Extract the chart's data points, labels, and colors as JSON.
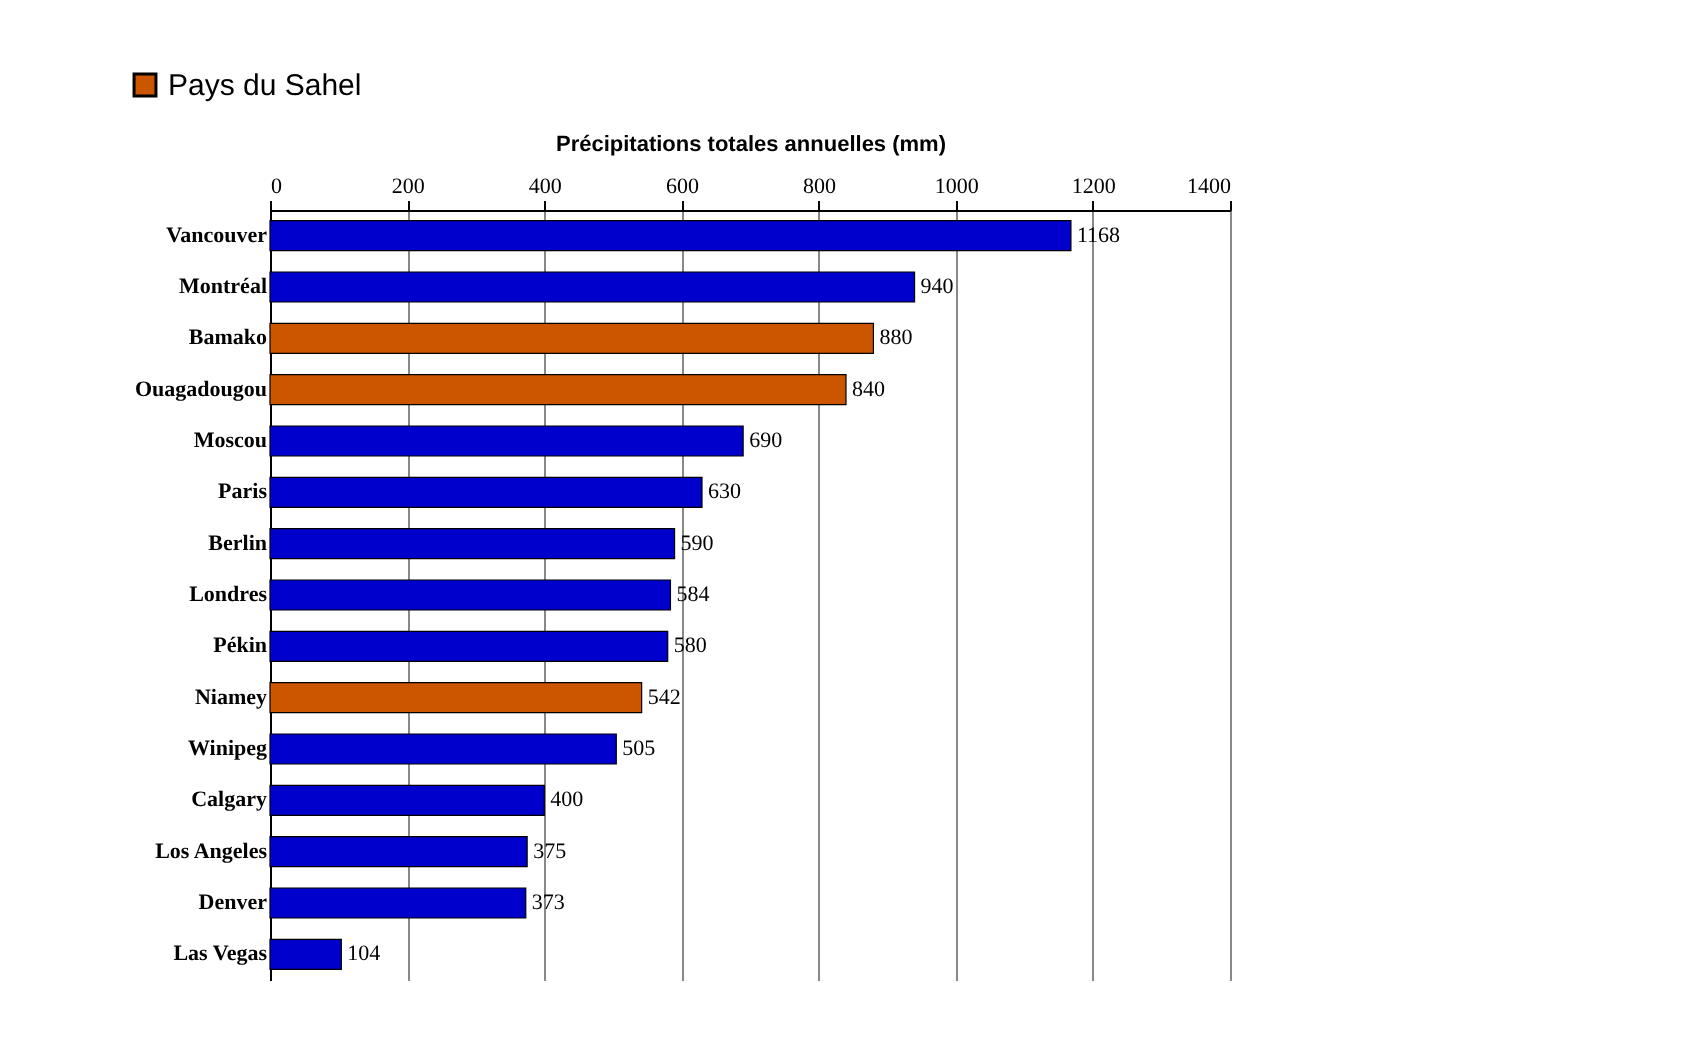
{
  "chart_data": {
    "type": "bar",
    "orientation": "horizontal",
    "xlabel": "Précipitations totales annuelles (mm)",
    "categories": [
      "Vancouver",
      "Montréal",
      "Bamako",
      "Ouagadougou",
      "Moscou",
      "Paris",
      "Berlin",
      "Londres",
      "Pékin",
      "Niamey",
      "Winipeg",
      "Calgary",
      "Los Angeles",
      "Denver",
      "Las Vegas"
    ],
    "series": [
      {
        "color": "#0000cc",
        "values": [
          1168,
          940,
          null,
          null,
          690,
          630,
          590,
          584,
          580,
          null,
          505,
          400,
          375,
          373,
          104
        ]
      },
      {
        "name": "Pays du Sahel",
        "color": "#cc5500",
        "values": [
          null,
          null,
          880,
          840,
          null,
          null,
          null,
          null,
          null,
          542,
          null,
          null,
          null,
          null,
          null
        ]
      }
    ],
    "xlim": [
      0,
      1400
    ],
    "xticks": [
      0,
      200,
      400,
      600,
      800,
      1000,
      1200,
      1400
    ],
    "grid": "x",
    "legend": "top left",
    "data_labels": true
  }
}
